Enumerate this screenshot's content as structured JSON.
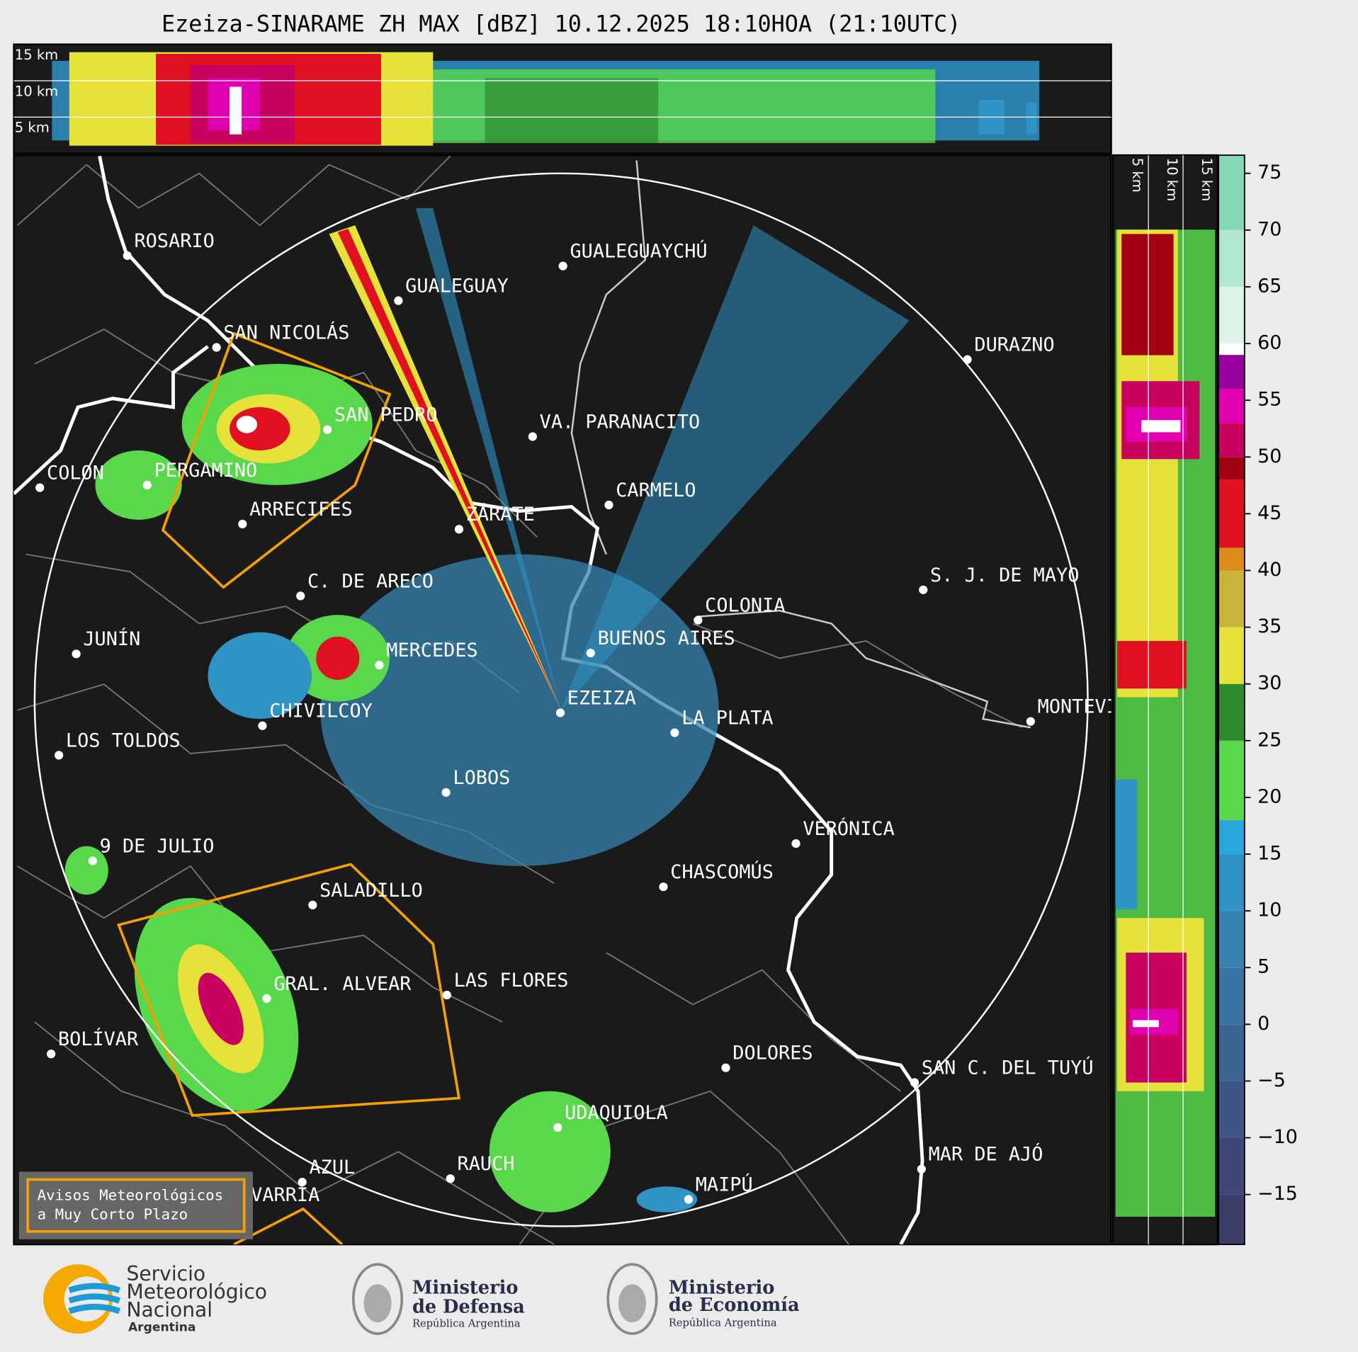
{
  "title": "Ezeiza-SINARAME ZH MAX [dBZ] 10.12.2025 18:10HOA (21:10UTC)",
  "cross_section": {
    "height_labels": [
      "15 km",
      "10 km",
      "5 km"
    ]
  },
  "side_section": {
    "height_labels": [
      "5 km",
      "10 km",
      "15 km"
    ]
  },
  "cities": [
    "ROSARIO",
    "GUALEGUAYCHÚ",
    "GUALEGUAY",
    "SAN NICOLÁS",
    "DURAZNO",
    "SAN PEDRO",
    "VA. PARANACITO",
    "COLON",
    "PERGAMINO",
    "CARMELO",
    "ARRECIFES",
    "ZÁRATE",
    "S. J. DE MAYO",
    "C. DE ARECO",
    "COLONIA",
    "JUNÍN",
    "BUENOS AIRES",
    "MERCEDES",
    "EZEIZA",
    "CHIVILCOY",
    "MONTEVIDEO",
    "LA PLATA",
    "LOS TOLDOS",
    "LOBOS",
    "VERÓNICA",
    "9 DE JULIO",
    "CHASCOMÚS",
    "SALADILLO",
    "GRAL. ALVEAR",
    "LAS FLORES",
    "BOLÍVAR",
    "DOLORES",
    "SAN C. DEL TUYÚ",
    "UDAQUIOLA",
    "MAR DE AJÓ",
    "AZUL",
    "RAUCH",
    "MAIPÚ",
    "OLAVARRÍA"
  ],
  "warning_legend": [
    "Avisos Meteorológicos",
    "a Muy Corto Plazo"
  ],
  "colorbar": {
    "lim": [
      -19.4,
      76.6
    ],
    "ticks": [
      {
        "value": -15,
        "label": "−15"
      },
      {
        "value": -10,
        "label": "−10"
      },
      {
        "value": -5,
        "label": "−5"
      },
      0,
      5,
      10,
      15,
      20,
      25,
      30,
      35,
      40,
      45,
      50,
      55,
      60,
      65,
      70,
      75
    ],
    "bands": [
      {
        "from": -19.4,
        "to": -15,
        "color": "#3a3d68"
      },
      {
        "from": -15,
        "to": -10,
        "color": "#3f4678"
      },
      {
        "from": -10,
        "to": -5,
        "color": "#3e5586"
      },
      {
        "from": -5,
        "to": 0,
        "color": "#3d6492"
      },
      {
        "from": 0,
        "to": 5,
        "color": "#3a74a2"
      },
      {
        "from": 5,
        "to": 10,
        "color": "#3683b2"
      },
      {
        "from": 10,
        "to": 15,
        "color": "#2f93c6"
      },
      {
        "from": 15,
        "to": 18,
        "color": "#29a6dc"
      },
      {
        "from": 18,
        "to": 25,
        "color": "#58d84a"
      },
      {
        "from": 25,
        "to": 30,
        "color": "#2e8a2e"
      },
      {
        "from": 30,
        "to": 35,
        "color": "#e6e23a"
      },
      {
        "from": 35,
        "to": 40,
        "color": "#c8b43a"
      },
      {
        "from": 40,
        "to": 42,
        "color": "#dc8a1a"
      },
      {
        "from": 42,
        "to": 48,
        "color": "#e01020"
      },
      {
        "from": 48,
        "to": 50,
        "color": "#a00010"
      },
      {
        "from": 50,
        "to": 53,
        "color": "#c80060"
      },
      {
        "from": 53,
        "to": 56,
        "color": "#e000b0"
      },
      {
        "from": 56,
        "to": 59,
        "color": "#9a00a0"
      },
      {
        "from": 59,
        "to": 60,
        "color": "#ffffff"
      },
      {
        "from": 60,
        "to": 65,
        "color": "#dff4e8"
      },
      {
        "from": 65,
        "to": 70,
        "color": "#b2e8d2"
      },
      {
        "from": 70,
        "to": 76.6,
        "color": "#84d8b8"
      }
    ]
  },
  "logos": {
    "smn": [
      "Servicio",
      "Meteorológico",
      "Nacional",
      "Argentina"
    ],
    "defensa": [
      "Ministerio",
      "de Defensa",
      "República Argentina"
    ],
    "economia": [
      "Ministerio",
      "de Economía",
      "República Argentina"
    ]
  }
}
